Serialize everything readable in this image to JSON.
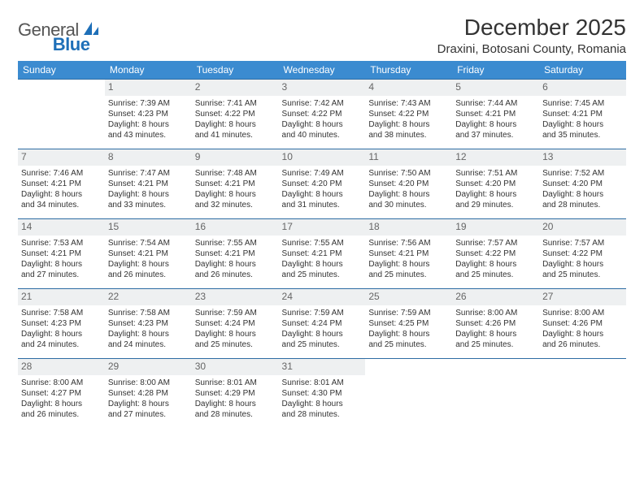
{
  "logo": {
    "text1": "General",
    "text2": "Blue"
  },
  "title": "December 2025",
  "location": "Draxini, Botosani County, Romania",
  "header_bg": "#3b8bd0",
  "header_fg": "#ffffff",
  "row_border": "#2d6ca3",
  "daynum_bg": "#eef0f1",
  "weekdays": [
    "Sunday",
    "Monday",
    "Tuesday",
    "Wednesday",
    "Thursday",
    "Friday",
    "Saturday"
  ],
  "weeks": [
    [
      null,
      {
        "d": "1",
        "sr": "Sunrise: 7:39 AM",
        "ss": "Sunset: 4:23 PM",
        "dl1": "Daylight: 8 hours",
        "dl2": "and 43 minutes."
      },
      {
        "d": "2",
        "sr": "Sunrise: 7:41 AM",
        "ss": "Sunset: 4:22 PM",
        "dl1": "Daylight: 8 hours",
        "dl2": "and 41 minutes."
      },
      {
        "d": "3",
        "sr": "Sunrise: 7:42 AM",
        "ss": "Sunset: 4:22 PM",
        "dl1": "Daylight: 8 hours",
        "dl2": "and 40 minutes."
      },
      {
        "d": "4",
        "sr": "Sunrise: 7:43 AM",
        "ss": "Sunset: 4:22 PM",
        "dl1": "Daylight: 8 hours",
        "dl2": "and 38 minutes."
      },
      {
        "d": "5",
        "sr": "Sunrise: 7:44 AM",
        "ss": "Sunset: 4:21 PM",
        "dl1": "Daylight: 8 hours",
        "dl2": "and 37 minutes."
      },
      {
        "d": "6",
        "sr": "Sunrise: 7:45 AM",
        "ss": "Sunset: 4:21 PM",
        "dl1": "Daylight: 8 hours",
        "dl2": "and 35 minutes."
      }
    ],
    [
      {
        "d": "7",
        "sr": "Sunrise: 7:46 AM",
        "ss": "Sunset: 4:21 PM",
        "dl1": "Daylight: 8 hours",
        "dl2": "and 34 minutes."
      },
      {
        "d": "8",
        "sr": "Sunrise: 7:47 AM",
        "ss": "Sunset: 4:21 PM",
        "dl1": "Daylight: 8 hours",
        "dl2": "and 33 minutes."
      },
      {
        "d": "9",
        "sr": "Sunrise: 7:48 AM",
        "ss": "Sunset: 4:21 PM",
        "dl1": "Daylight: 8 hours",
        "dl2": "and 32 minutes."
      },
      {
        "d": "10",
        "sr": "Sunrise: 7:49 AM",
        "ss": "Sunset: 4:20 PM",
        "dl1": "Daylight: 8 hours",
        "dl2": "and 31 minutes."
      },
      {
        "d": "11",
        "sr": "Sunrise: 7:50 AM",
        "ss": "Sunset: 4:20 PM",
        "dl1": "Daylight: 8 hours",
        "dl2": "and 30 minutes."
      },
      {
        "d": "12",
        "sr": "Sunrise: 7:51 AM",
        "ss": "Sunset: 4:20 PM",
        "dl1": "Daylight: 8 hours",
        "dl2": "and 29 minutes."
      },
      {
        "d": "13",
        "sr": "Sunrise: 7:52 AM",
        "ss": "Sunset: 4:20 PM",
        "dl1": "Daylight: 8 hours",
        "dl2": "and 28 minutes."
      }
    ],
    [
      {
        "d": "14",
        "sr": "Sunrise: 7:53 AM",
        "ss": "Sunset: 4:21 PM",
        "dl1": "Daylight: 8 hours",
        "dl2": "and 27 minutes."
      },
      {
        "d": "15",
        "sr": "Sunrise: 7:54 AM",
        "ss": "Sunset: 4:21 PM",
        "dl1": "Daylight: 8 hours",
        "dl2": "and 26 minutes."
      },
      {
        "d": "16",
        "sr": "Sunrise: 7:55 AM",
        "ss": "Sunset: 4:21 PM",
        "dl1": "Daylight: 8 hours",
        "dl2": "and 26 minutes."
      },
      {
        "d": "17",
        "sr": "Sunrise: 7:55 AM",
        "ss": "Sunset: 4:21 PM",
        "dl1": "Daylight: 8 hours",
        "dl2": "and 25 minutes."
      },
      {
        "d": "18",
        "sr": "Sunrise: 7:56 AM",
        "ss": "Sunset: 4:21 PM",
        "dl1": "Daylight: 8 hours",
        "dl2": "and 25 minutes."
      },
      {
        "d": "19",
        "sr": "Sunrise: 7:57 AM",
        "ss": "Sunset: 4:22 PM",
        "dl1": "Daylight: 8 hours",
        "dl2": "and 25 minutes."
      },
      {
        "d": "20",
        "sr": "Sunrise: 7:57 AM",
        "ss": "Sunset: 4:22 PM",
        "dl1": "Daylight: 8 hours",
        "dl2": "and 25 minutes."
      }
    ],
    [
      {
        "d": "21",
        "sr": "Sunrise: 7:58 AM",
        "ss": "Sunset: 4:23 PM",
        "dl1": "Daylight: 8 hours",
        "dl2": "and 24 minutes."
      },
      {
        "d": "22",
        "sr": "Sunrise: 7:58 AM",
        "ss": "Sunset: 4:23 PM",
        "dl1": "Daylight: 8 hours",
        "dl2": "and 24 minutes."
      },
      {
        "d": "23",
        "sr": "Sunrise: 7:59 AM",
        "ss": "Sunset: 4:24 PM",
        "dl1": "Daylight: 8 hours",
        "dl2": "and 25 minutes."
      },
      {
        "d": "24",
        "sr": "Sunrise: 7:59 AM",
        "ss": "Sunset: 4:24 PM",
        "dl1": "Daylight: 8 hours",
        "dl2": "and 25 minutes."
      },
      {
        "d": "25",
        "sr": "Sunrise: 7:59 AM",
        "ss": "Sunset: 4:25 PM",
        "dl1": "Daylight: 8 hours",
        "dl2": "and 25 minutes."
      },
      {
        "d": "26",
        "sr": "Sunrise: 8:00 AM",
        "ss": "Sunset: 4:26 PM",
        "dl1": "Daylight: 8 hours",
        "dl2": "and 25 minutes."
      },
      {
        "d": "27",
        "sr": "Sunrise: 8:00 AM",
        "ss": "Sunset: 4:26 PM",
        "dl1": "Daylight: 8 hours",
        "dl2": "and 26 minutes."
      }
    ],
    [
      {
        "d": "28",
        "sr": "Sunrise: 8:00 AM",
        "ss": "Sunset: 4:27 PM",
        "dl1": "Daylight: 8 hours",
        "dl2": "and 26 minutes."
      },
      {
        "d": "29",
        "sr": "Sunrise: 8:00 AM",
        "ss": "Sunset: 4:28 PM",
        "dl1": "Daylight: 8 hours",
        "dl2": "and 27 minutes."
      },
      {
        "d": "30",
        "sr": "Sunrise: 8:01 AM",
        "ss": "Sunset: 4:29 PM",
        "dl1": "Daylight: 8 hours",
        "dl2": "and 28 minutes."
      },
      {
        "d": "31",
        "sr": "Sunrise: 8:01 AM",
        "ss": "Sunset: 4:30 PM",
        "dl1": "Daylight: 8 hours",
        "dl2": "and 28 minutes."
      },
      null,
      null,
      null
    ]
  ]
}
